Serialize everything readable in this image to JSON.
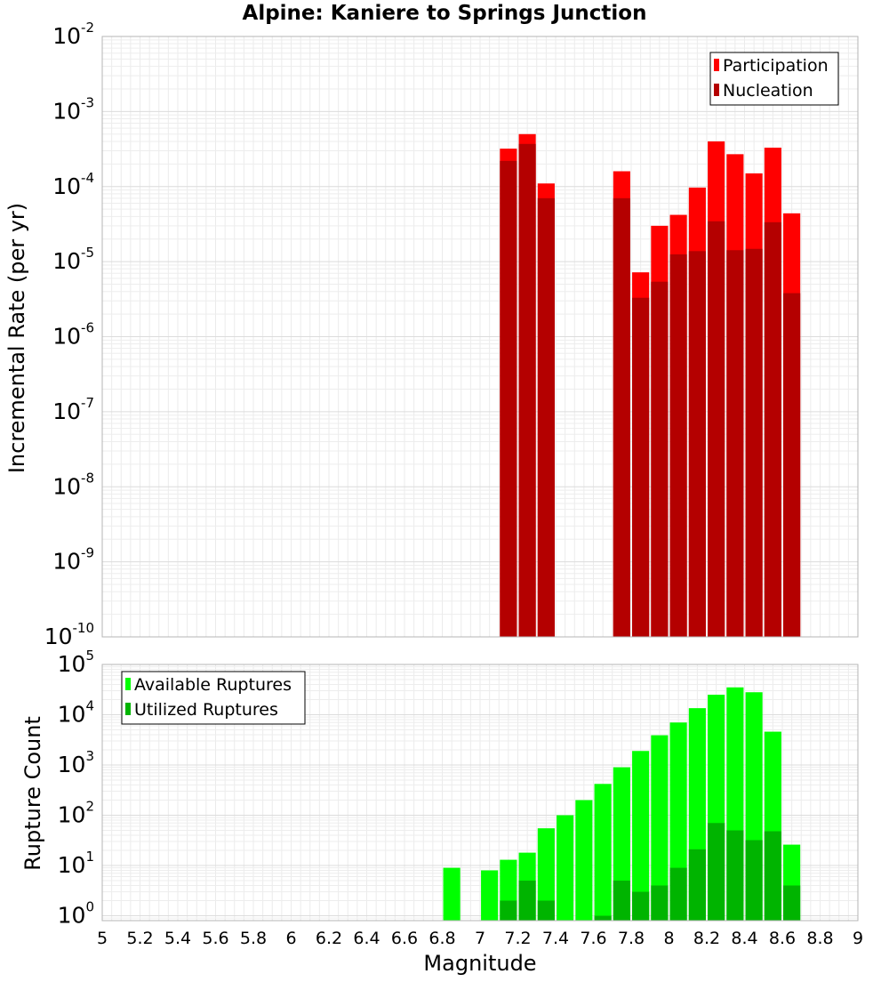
{
  "chart_data": [
    {
      "type": "bar",
      "title": "Alpine: Kaniere to Springs Junction",
      "ylabel": "Incremental Rate (per yr)",
      "xlabel": "Magnitude",
      "y_scale": "log",
      "ylim": [
        1e-10,
        0.01
      ],
      "xlim": [
        5,
        9
      ],
      "y_ticks": [
        {
          "base": "10",
          "exp": "-10"
        },
        {
          "base": "10",
          "exp": "-9"
        },
        {
          "base": "10",
          "exp": "-8"
        },
        {
          "base": "10",
          "exp": "-7"
        },
        {
          "base": "10",
          "exp": "-6"
        },
        {
          "base": "10",
          "exp": "-5"
        },
        {
          "base": "10",
          "exp": "-4"
        },
        {
          "base": "10",
          "exp": "-3"
        },
        {
          "base": "10",
          "exp": "-2"
        }
      ],
      "bar_overlay": true,
      "grid": true,
      "legend_position": "top-right",
      "x": [
        7.15,
        7.25,
        7.35,
        7.75,
        7.85,
        7.95,
        8.05,
        8.15,
        8.25,
        8.35,
        8.45,
        8.55,
        8.65
      ],
      "series": [
        {
          "name": "Participation",
          "color": "#ff0000",
          "values": [
            0.00032,
            0.0005,
            0.00011,
            0.00016,
            7.2e-06,
            3e-05,
            4.2e-05,
            9.7e-05,
            0.0004,
            0.00027,
            0.00015,
            0.00033,
            4.4e-05
          ]
        },
        {
          "name": "Nucleation",
          "color": "#b40000",
          "values": [
            0.00022,
            0.00037,
            7e-05,
            7e-05,
            3.3e-06,
            5.4e-06,
            1.25e-05,
            1.38e-05,
            3.45e-05,
            1.42e-05,
            1.48e-05,
            3.35e-05,
            3.8e-06
          ]
        }
      ]
    },
    {
      "type": "bar",
      "ylabel": "Rupture Count",
      "xlabel": "Magnitude",
      "y_scale": "log",
      "ylim": [
        0.8,
        100000
      ],
      "xlim": [
        5,
        9
      ],
      "y_ticks": [
        {
          "base": "10",
          "exp": "0"
        },
        {
          "base": "10",
          "exp": "1"
        },
        {
          "base": "10",
          "exp": "2"
        },
        {
          "base": "10",
          "exp": "3"
        },
        {
          "base": "10",
          "exp": "4"
        },
        {
          "base": "10",
          "exp": "5"
        }
      ],
      "x_tick_labels": [
        "5",
        "5.2",
        "5.4",
        "5.6",
        "5.8",
        "6",
        "6.2",
        "6.4",
        "6.6",
        "6.8",
        "7",
        "7.2",
        "7.4",
        "7.6",
        "7.8",
        "8",
        "8.2",
        "8.4",
        "8.6",
        "8.8",
        "9"
      ],
      "bar_overlay": true,
      "grid": true,
      "legend_position": "top-left",
      "x": [
        6.85,
        7.05,
        7.15,
        7.25,
        7.35,
        7.45,
        7.55,
        7.65,
        7.75,
        7.85,
        7.95,
        8.05,
        8.15,
        8.25,
        8.35,
        8.45,
        8.55,
        8.65
      ],
      "series": [
        {
          "name": "Available Ruptures",
          "color": "#00ff00",
          "values": [
            9,
            8,
            13,
            18,
            55,
            100,
            200,
            420,
            900,
            1900,
            3900,
            7000,
            13500,
            25000,
            35000,
            28000,
            4600,
            26
          ]
        },
        {
          "name": "Utilized Ruptures",
          "color": "#00b400",
          "values": [
            0,
            0,
            2,
            5,
            2,
            0,
            0,
            1,
            5,
            3,
            4,
            9,
            21,
            70,
            50,
            32,
            48,
            4
          ]
        }
      ]
    }
  ]
}
